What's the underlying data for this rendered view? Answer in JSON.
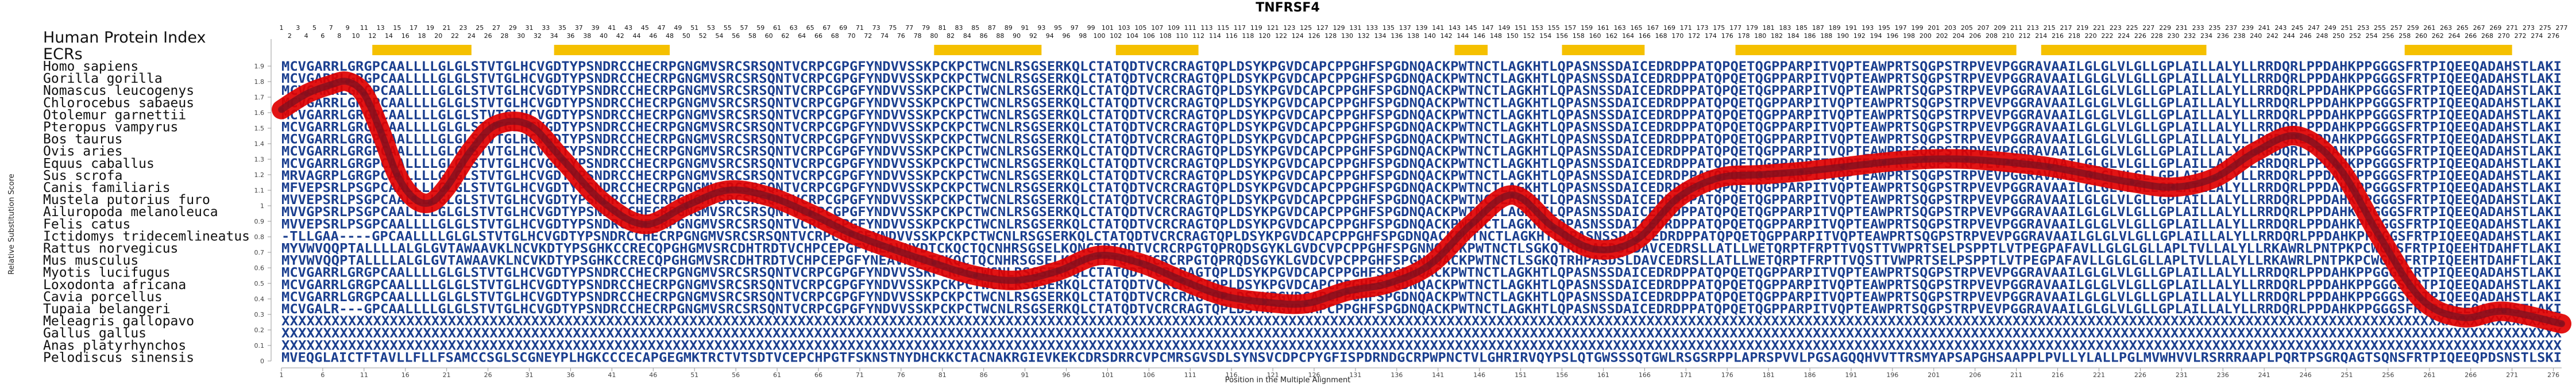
{
  "chart_data": {
    "type": "line",
    "title": "TNFRSF4",
    "xlabel": "Position in the Multiple Alignment",
    "ylabel": "Relative Substitution Score",
    "xlim": [
      1,
      277
    ],
    "ylim": [
      0,
      2.0
    ],
    "x_ticks": [
      1,
      6,
      11,
      16,
      21,
      26,
      31,
      36,
      41,
      46,
      51,
      56,
      61,
      66,
      71,
      76,
      81,
      86,
      91,
      96,
      101,
      106,
      111,
      116,
      121,
      126,
      131,
      136,
      141,
      146,
      151,
      156,
      161,
      166,
      171,
      176,
      181,
      186,
      191,
      196,
      201,
      206,
      211,
      216,
      221,
      226,
      231,
      236,
      241,
      246,
      251,
      256,
      261,
      266,
      271,
      276
    ],
    "y_ticks": [
      0,
      0.1,
      0.2,
      0.3,
      0.4,
      0.5,
      0.6,
      0.7,
      0.8,
      0.9,
      1.0,
      1.1,
      1.2,
      1.3,
      1.4,
      1.5,
      1.6,
      1.7,
      1.8,
      1.9
    ],
    "top_label_left": "Human Protein Index",
    "top_label_ecrs": "ECRs",
    "ecr_blocks": [
      [
        12,
        24
      ],
      [
        34,
        48
      ],
      [
        80,
        93
      ],
      [
        102,
        112
      ],
      [
        143,
        147
      ],
      [
        156,
        166
      ],
      [
        177,
        211
      ],
      [
        214,
        234
      ],
      [
        258,
        271
      ]
    ],
    "series": [
      {
        "x": [
          1,
          4,
          7,
          9,
          11,
          13,
          15,
          17,
          19,
          21,
          24,
          27,
          31,
          35,
          40,
          45,
          50,
          55,
          60,
          65,
          70,
          75,
          80,
          85,
          90,
          95,
          100,
          105,
          110,
          115,
          120,
          125,
          130,
          135,
          140,
          145,
          150,
          155,
          160,
          165,
          170,
          175,
          180,
          185,
          190,
          195,
          200,
          205,
          210,
          215,
          220,
          225,
          230,
          235,
          240,
          245,
          250,
          255,
          260,
          265,
          270,
          277
        ],
        "y": [
          1.62,
          1.72,
          1.78,
          1.8,
          1.72,
          1.48,
          1.2,
          1.05,
          1.02,
          1.12,
          1.36,
          1.52,
          1.52,
          1.3,
          1.02,
          0.88,
          1.0,
          1.1,
          1.06,
          0.95,
          0.82,
          0.72,
          0.63,
          0.55,
          0.52,
          0.58,
          0.68,
          0.63,
          0.52,
          0.42,
          0.38,
          0.37,
          0.45,
          0.5,
          0.62,
          0.88,
          1.07,
          0.86,
          0.72,
          0.78,
          1.05,
          1.18,
          1.2,
          1.22,
          1.25,
          1.28,
          1.3,
          1.3,
          1.28,
          1.25,
          1.2,
          1.15,
          1.12,
          1.18,
          1.35,
          1.45,
          1.25,
          0.8,
          0.4,
          0.28,
          0.32,
          0.24
        ]
      }
    ]
  },
  "alignment": {
    "species": [
      "Homo sapiens",
      "Gorilla gorilla",
      "Nomascus leucogenys",
      "Chlorocebus sabaeus",
      "Otolemur garnettii",
      "Pteropus vampyrus",
      "Bos taurus",
      "Ovis aries",
      "Equus caballus",
      "Sus scrofa",
      "Canis familiaris",
      "Mustela putorius furo",
      "Ailuropoda melanoleuca",
      "Felis catus",
      "Ictidomys tridecemlineatus",
      "Rattus norvegicus",
      "Mus musculus",
      "Myotis lucifugus",
      "Loxodonta africana",
      "Cavia porcellus",
      "Tupaia belangeri",
      "Meleagris gallopavo",
      "Gallus gallus",
      "Anas platyrhynchos",
      "Pelodiscus sinensis"
    ],
    "rows": [
      "MCVGARRLGRGPCAALLLLGLGLSTVTGLHCVGDTYPSNDRCCHECRPGNGMVSRCSRSQNTVCRPCGPGFYNDVVSSKPCKPCTWCNLRSGSERKQLCTATQDTVCRCRAGTQPLDSYKPGVDCAPCPPGHFSPGDNQACKPWTNCTLAGKHTLQPASNSSDAICEDRDPPATQPQETQGPPARPITVQPTEAWPRTSQGPSTRPVEVPGGRAVAAILGLGLVLGLLGPLAILLALYLLRRDQRLPPDAHKPPGGGSFRTPIQEEQADAHSTLAKI",
      "MCVGARRLGRGPCAALLLLGLGLSTVTGLHCVGDTYPSNDRCCHECRPGNGMVSRCSRSQNTVCRPCGPGFYNDVVSSKPCKPCTWCNLRSGSERKQLCTATQDTVCRCRAGTQPLDSYKPGVDCAPCPPGHFSPGDNQACKPWTNCTLAGKHTLQPASNSSDAICEDRDPPATQPQETQGPPARPITVQPTEAWPRTSQGPSTRPVEVPGGRAVAAILGLGLVLGLLGPLAILLALYLLRRDQRLPPDAHKPPGGGSFRTPIQEEQADAHSTLAKI",
      "MCVGARRLGRGPCAALLLLGLGLSTVTGLHCVGDTYPSNDRCCHECRPGNGMVSRCSRSQNTVCRPCGPGFYNDVVSSKPCKPCTWCNLRSGSERKQLCTATQDTVCRCRAGTQPLDSYKPGVDCAPCPPGHFSPGDNQACKPWTNCTLAGKHTLQPASNSSDAICEDRDPPATQPQETQGPPARPITVQPTEAWPRTSQGPSTRPVEVPGGRAVAAILGLGLVLGLLGPLAILLALYLLRRDQRLPPDAHKPPGGGSFRTPIQEEQADAHSTLAKI",
      "MCVGARRLGRGPCAALLLLGLGLSTVTGLHCVGDTYPSNDRCCHECRPGNGMVSRCSRSQNTVCRPCGPGFYNDVVSSKPCKPCTWCNLRSGSERKQLCTATQDTVCRCRAGTQPLDSYKPGVDCAPCPPGHFSPGDNQACKPWTNCTLAGKHTLQPASNSSDAICEDRDPPATQPQETQGPPARPITVQPTEAWPRTSQGPSTRPVEVPGGRAVAAILGLGLVLGLLGPLAILLALYLLRRDQRLPPDAHKPPGGGSFRTPIQEEQADAHSTLAKI",
      "MCVGARRLGRGPCAALLLLGLGLSTVTGLHCVGDTYPSNDRCCHECRPGNGMVSRCSRSQNTVCRPCGPGFYNDVVSSKPCKPCTWCNLRSGSERKQLCTATQDTVCRCRAGTQPLDSYKPGVDCAPCPPGHFSPGDNQACKPWTNCTLAGKHTLQPASNSSDAICEDRDPPATQPQETQGPPARPITVQPTEAWPRTSQGPSTRPVEVPGGRAVAAILGLGLVLGLLGPLAILLALYLLRRDQRLPPDAHKPPGGGSFRTPIQEEQADAHSTLAKI",
      "MCVGARRLGRGPCAALLLLGLGLSTVTGLHCVGDTYPSNDRCCHECRPGNGMVSRCSRSQNTVCRPCGPGFYNDVVSSKPCKPCTWCNLRSGSERKQLCTATQDTVCRCRAGTQPLDSYKPGVDCAPCPPGHFSPGDNQACKPWTNCTLAGKHTLQPASNSSDAICEDRDPPATQPQETQGPPARPITVQPTEAWPRTSQGPSTRPVEVPGGRAVAAILGLGLVLGLLGPLAILLALYLLRRDQRLPPDAHKPPGGGSFRTPIQEEQADAHSTLAKI",
      "MCVGARRLGRGPCAALLLLGLGLSTVTGLHCVGDTYPSNDRCCHECRPGNGMVSRCSRSQNTVCRPCGPGFYNDVVSSKPCKPCTWCNLRSGSERKQLCTATQDTVCRCRAGTQPLDSYKPGVDCAPCPPGHFSPGDNQACKPWTNCTLAGKHTLQPASNSSDAICEDRDPPATQPQETQGPPARPITVQPTEAWPRTSQGPSTRPVEVPGGRAVAAILGLGLVLGLLGPLAILLALYLLRRDQRLPPDAHKPPGGGSFRTPIQEEQADAHSTLAKI",
      "MCVGARRLGRGPCAALLLLGLGLSTVTGLHCVGDTYPSNDRCCHECRPGNGMVSRCSRSQNTVCRPCGPGFYNDVVSSKPCKPCTWCNLRSGSERKQLCTATQDTVCRCRAGTQPLDSYKPGVDCAPCPPGHFSPGDNQACKPWTNCTLAGKHTLQPASNSSDAICEDRDPPATQPQETQGPPARPITVQPTEAWPRTSQGPSTRPVEVPGGRAVAAILGLGLVLGLLGPLAILLALYLLRRDQRLPPDAHKPPGGGSFRTPIQEEQADAHSTLAKI",
      "MCVGARRLGRGPCAALLLLGLGLSTVTGLHCVGDTYPSNDRCCHECRPGNGMVSRCSRSQNTVCRPCGPGFYNDVVSSKPCKPCTWCNLRSGSERKQLCTATQDTVCRCRAGTQPLDSYKPGVDCAPCPPGHFSPGDNQACKPWTNCTLAGKHTLQPASNSSDAICEDRDPPATQPQETQGPPARPITVQPTEAWPRTSQGPSTRPVEVPGGRAVAAILGLGLVLGLLGPLAILLALYLLRRDQRLPPDAHKPPGGGSFRTPIQEEQADAHSTLAKI",
      "MRVAGRPLGRGPCAALLLLGLGLSTVTGLHCVGDTYPSNDRCCHECRPGNGMVSRCSRSQNTVCRPCGPGFYNDVVSSKPCKPCTWCNLRSGSERKQLCTATQDTVCRCRAGTQPLDSYKPGVDCAPCPPGHFSPGDNQACKPWTNCTLAGKHTLQPASNSSDAICEDRDPPATQPQETQGPPARPITVQPTEAWPRTSQGPSTRPVEVPGGRAVAAILGLGLVLGLLGPLAILLALYLLRRDQRLPPDAHKPPGGGSFRTPIQEEQADAHSTLAKI",
      "MFVEPSRLPSGPCAALLLLGLGLSTVTGLHCVGDTYPSNDRCCHECRPGNGMVSRCSRSQNTVCRPCGPGFYNDVVSSKPCKPCTWCNLRSGSERKQLCTATQDTVCRCRAGTQPLDSYKPGVDCAPCPPGHFSPGDNQACKPWTNCTLAGKHTLQPASNSSDAICEDRDPPATQPQETQGPPARPITVQPTEAWPRTSQGPSTRPVEVPGGRAVAAILGLGLVLGLLGPLAILLALYLLRRDQRLPPDAHKPPGGGSFRTPIQEEQADAHSTLAKI",
      "MVVEPSRLPSGPCAALLLLGLGLSTVTGLHCVGDTYPSNDRCCHECRPGNGMVSRCSRSQNTVCRPCGPGFYNDVVSSKPCKPCTWCNLRSGSERKQLCTATQDTVCRCRAGTQPLDSYKPGVDCAPCPPGHFSPGDNQACKPWTNCTLAGKHTLQPASNSSDAICEDRDPPATQPQETQGPPARPITVQPTEAWPRTSQGPSTRPVEVPGGRAVAAILGLGLVLGLLGPLAILLALYLLRRDQRLPPDAHKPPGGGSFRTPIQEEQADAHSTLAKI",
      "MVVGPSRLPSGPCAALLLLGLGLSTVTGLHCVGDTYPSNDRCCHECRPGNGMVSRCSRSQNTVCRPCGPGFYNDVVSSKPCKPCTWCNLRSGSERKQLCTATQDTVCRCRAGTQPLDSYKPGVDCAPCPPGHFSPGDNQACKPWTNCTLAGKHTLQPASNSSDAICEDRDPPATQPQETQGPPARPITVQPTEAWPRTSQGPSTRPVEVPGGRAVAAILGLGLVLGLLGPLAILLALYLLRRDQRLPPDAHKPPGGGSFRTPIQEEQADAHSTLAKI",
      "MVVEPSRLPSGPCAALLLLGLGLSTVTGLHCVGDTYPSNDRCCHECRPGNGMVSRCSRSQNTVCRPCGPGFYNDVVSSKPCKPCTWCNLRSGSERKQLCTATQDTVCRCRAGTQPLDSYKPGVDCAPCPPGHFSPGDNQACKPWTNCTLAGKHTLQPASNSSDAICEDRDPPATQPQETQGPPARPITVQPTEAWPRTSQGPSTRPVEVPGGRAVAAILGLGLVLGLLGPLAILLALYLLRRDQRLPPDAHKPPGGGSFRTPIQEEQADAHSTLAKI",
      "-TLLGAA----GPCAALLLLGLGLSTVTGLHCVGDTYPSNDRCCHECRPGNGMVSRCSRSQNTVCRPCGPGFYNDVVSSKPCKPCTWCNLRSGSERKQLCTATQDTVCRCRAGTQPLDSYKPGVDCAPCPPGHFSPGDNQACKPWTNCTLAGKHTLQPASNSSDAICEDRDPPATQPQETQGPPARPITVQPTEAWPRTSQGPSTRPVEVPGGRAVAAILGLGLVLGLLGPLAILLALYLLRRDQRLPPDAHKPPGGGSFRTPIQEEQADAHSTLAKI",
      "MYVWVQQPTALLLLALGLGVTAWAAVKLNCVKDTYPSGHKCCRECQPGHGMVSRCDHTRDTVCHPCEPGFYNEAVNYDTCKQCTQCNHRSGSELKQNCTPTQDTVCRCRPGTQPRQDSGYKLGVDCVPCPPGHFSPGNNQACKPWTNCTLSGKQTRHPASDSLDAVCEDRSLLATLLWETQRPTFRPTTVQSTTVWPRTSELPSPPTLVTPEGPAFAVLLGLGLGLLAPLTVLLALYLLRKAWRLPNTPKPCWGNSFRTPIQEEHTDAHFTLAKI",
      "MYVWVQQPTALLLLALGLGVTAWAAVKLNCVKDTYPSGHKCCRECQPGHGMVSRCDHTRDTVCHPCEPGFYNEAVNYDTCKQCTQCNHRSGSELKQNCTPTQDTVCRCRPGTQPRQDSGYKLGVDCVPCPPGHFSPGNNQACKPWTNCTLSGKQTRHPASDSLDAVCEDRSLLATLLWETQRPTFRPTTVQSTTVWPRTSELPSPPTLVTPEGPAFAVLLGLGLGLLAPLTVLLALYLLRKAWRLPNTPKPCWGNSFRTPIQEEHTDAHFTLAKI",
      "MCVGARRLGRGPCAALLLLGLGLSTVTGLHCVGDTYPSNDRCCHECRPGNGMVSRCSRSQNTVCRPCGPGFYNDVVSSKPCKPCTWCNLRSGSERKQLCTATQDTVCRCRAGTQPLDSYKPGVDCAPCPPGHFSPGDNQACKPWTNCTLAGKHTLQPASNSSDAICEDRDPPATQPQETQGPPARPITVQPTEAWPRTSQGPSTRPVEVPGGRAVAAILGLGLVLGLLGPLAILLALYLLRRDQRLPPDAHKPPGGGSFRTPIQEEQADAHSTLAKI",
      "MCVGARRLGRGPCAALLLLGLGLSTVTGLHCVGDTYPSNDRCCHECRPGNGMVSRCSRSQNTVCRPCGPGFYNDVVSSKPCKPCTWCNLRSGSERKQLCTATQDTVCRCRAGTQPLDSYKPGVDCAPCPPGHFSPGDNQACKPWTNCTLAGKHTLQPASNSSDAICEDRDPPATQPQETQGPPARPITVQPTEAWPRTSQGPSTRPVEVPGGRAVAAILGLGLVLGLLGPLAILLALYLLRRDQRLPPDAHKPPGGGSFRTPIQEEQADAHSTLAKI",
      "MCVGARRLGRGPCAALLLLGLGLSTVTGLHCVGDTYPSNDRCCHECRPGNGMVSRCSRSQNTVCRPCGPGFYNDVVSSKPCKPCTWCNLRSGSERKQLCTATQDTVCRCRAGTQPLDSYKPGVDCAPCPPGHFSPGDNQACKPWTNCTLAGKHTLQPASNSSDAICEDRDPPATQPQETQGPPARPITVQPTEAWPRTSQGPSTRPVEVPGGRAVAAILGLGLVLGLLGPLAILLALYLLRRDQRLPPDAHKPPGGGSFRTPIQEEQADAHSTLAKI",
      "MCVGALR---GPCAALLLLGLGLSTVTGLHCVGDTYPSNDRCCHECRPGNGMVSRCSRSQNTVCRPCGPGFYNDVVSSKPCKPCTWCNLRSGSERKQLCTATQDTVCRCRAGTQPLDSYKPGVDCAPCPPGHFSPGDNQACKPWTNCTLAGKHTLQPASNSSDAICEDRDPPATQPQETQGPPARPITVQPTEAWPRTSQGPSTRPVEVPGGRAVAAILGLGLVLGLLGPLAILLALYLLRRDQRLPPDAHKPPGGGSFRTPIQEEQADAHSTLAKI",
      "XXXXXXXXXXXXXXXXXXXXXXXXXXXXXXXXXXXXXXXXXXXXXXXXXXXXXXXXXXXXXXXXXXXXXXXXXXXXXXXXXXXXXXXXXXXXXXXXXXXXXXXXXXXXXXXXXXXXXXXXXXXXXXXXXXXXXXXXXXXXXXXXXXXXXXXXXXXXXXXXXXXXXXXXXXXXXXXXXXXXXXXXXXXXXXXXXXXXXXXXXXXXXXXXXXXXXXXXXXXXXXXXXXXXXXXXXXXXXXXXXXXXXXXXXXXXXXXXXXXXXXXXXXXXXXXXXX",
      "XXXXXXXXXXXXXXXXXXXXXXXXXXXXXXXXXXXXXXXXXXXXXXXXXXXXXXXXXXXXXXXXXXXXXXXXXXXXXXXXXXXXXXXXXXXXXXXXXXXXXXXXXXXXXXXXXXXXXXXXXXXXXXXXXXXXXXXXXXXXXXXXXXXXXXXXXXXXXXXXXXXXXXXXXXXXXXXXXXXXXXXXXXXXXXXXXXXXXXXXXXXXXXXXXXXXXXXXXXXXXXXXXXXXXXXXXXXXXXXXXXXXXXXXXXXXXXXXXXXXXXXXXXXXXXXXXX",
      "XXXXXXXXXXXXXXXXXXXXXXXXXXXXXXXXXXXXXXXXXXXXXXXXXXXXXXXXXXXXXXXXXXXXXXXXXXXXXXXXXXXXXXXXXXXXXXXXXXXXXXXXXXXXXXXXXXXXXXXXXXXXXXXXXXXXXXXXXXXXXXXXXXXXXXXXXXXXXXXXXXXXXXXXXXXXXXXXXXXXXXXXXXXXXXXXXXXXXXXXXXXXXXXXXXXXXXXXXXXXXXXXXXXXXXXXXXXXXXXXXXXXXXXXXXXXXXXXXXXXXXXXXXXXXXXXXX",
      "MVEQGLAICTFTAVLLFLLFSAMCCSGLSCGNEYPLHGKCCCECAPGEGMKTRCTVTSDTVCEPCHPGTFSKNSTNYDHCKKCTACNAKRGIEVKEKCDRSDRRCVPCMRSGVSDLSYNSVCDPCPYGFISPDRNDGCRPWPNCTVLGHRIRVQYPSLQTGWSSSQTGWLRSGSRPPLAPRSPVVLPGSAGQQHVVTTRSMYAPSAPGHSAAPPLPVLLYLALLPGLMVWHVVLRSRRRAAPLPQRTPSGRQAGTSQNSFRTPIQEEQPDSNSTLSKI"
    ],
    "top_position_labels": [
      "1",
      "3",
      "5",
      "7",
      "9",
      "11",
      "13",
      "15",
      "17",
      "19",
      "21",
      "23",
      "25",
      "27",
      "29",
      "31",
      "33",
      "35",
      "37",
      "39",
      "41",
      "43",
      "45",
      "47",
      "49",
      "51",
      "53",
      "55",
      "57",
      "59",
      "61",
      "63",
      "65",
      "67",
      "69",
      "71",
      "73",
      "75",
      "77",
      "79",
      "81",
      "83",
      "85",
      "87",
      "89",
      "91",
      "93",
      "95",
      "97",
      "99",
      "101",
      "103",
      "105",
      "107",
      "109",
      "111",
      "113",
      "115",
      "117",
      "119",
      "121",
      "123",
      "125",
      "127",
      "129",
      "131",
      "133",
      "135",
      "137",
      "139",
      "141",
      "143",
      "145",
      "147",
      "149",
      "151",
      "153",
      "155",
      "157",
      "159",
      "161",
      "163",
      "165",
      "167",
      "169",
      "171",
      "173",
      "175",
      "177",
      "179",
      "181",
      "183",
      "185",
      "187",
      "189",
      "191",
      "193",
      "195",
      "197",
      "199",
      "201",
      "203",
      "205",
      "207",
      "209",
      "211",
      "213",
      "215",
      "217",
      "219",
      "221",
      "223",
      "225",
      "227",
      "229",
      "231",
      "233",
      "235",
      "237",
      "239",
      "241",
      "243",
      "245",
      "247",
      "249",
      "251",
      "253",
      "255",
      "257",
      "259",
      "261",
      "263",
      "265",
      "267",
      "269",
      "271",
      "273",
      "275",
      "277"
    ]
  },
  "colors": {
    "ecr": "#f5c000",
    "line_outer": "#e00000",
    "line_inner": "#7a1020",
    "sequence": "#1b3f8f"
  }
}
